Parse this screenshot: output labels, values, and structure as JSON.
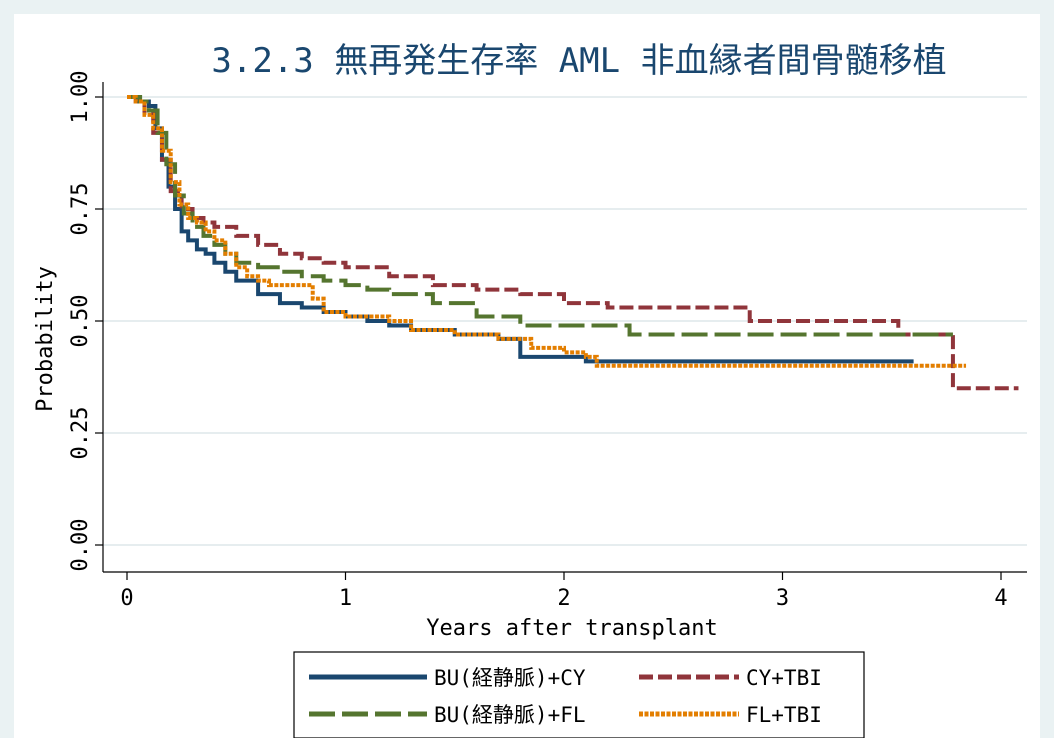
{
  "chart_data": {
    "type": "line",
    "title": "3.2.3 無再発生存率 AML 非血縁者間骨髄移植",
    "xlabel": "Years after transplant",
    "ylabel": "Probability",
    "xlim": [
      0,
      4.1
    ],
    "ylim": [
      0,
      1
    ],
    "xticks": [
      0,
      1,
      2,
      3,
      4
    ],
    "xtick_labels": [
      "0",
      "1",
      "2",
      "3",
      "4"
    ],
    "yticks": [
      0,
      0.25,
      0.5,
      0.75,
      1
    ],
    "ytick_labels": [
      "0.00",
      "0.25",
      "0.50",
      "0.75",
      "1.00"
    ],
    "grid": "horizontal",
    "legend_position": "bottom",
    "series": [
      {
        "name": "BU(経静脈)+CY",
        "color": "#1a476f",
        "dash": "solid",
        "x": [
          0,
          0.05,
          0.1,
          0.13,
          0.16,
          0.19,
          0.22,
          0.25,
          0.28,
          0.32,
          0.36,
          0.4,
          0.45,
          0.5,
          0.6,
          0.7,
          0.8,
          0.9,
          1.0,
          1.1,
          1.2,
          1.3,
          1.5,
          1.7,
          1.79,
          1.8,
          2.0,
          2.1,
          2.2,
          3.6
        ],
        "y": [
          1.0,
          0.99,
          0.98,
          0.93,
          0.86,
          0.8,
          0.75,
          0.7,
          0.68,
          0.66,
          0.65,
          0.63,
          0.61,
          0.59,
          0.56,
          0.54,
          0.53,
          0.52,
          0.51,
          0.5,
          0.49,
          0.48,
          0.47,
          0.46,
          0.46,
          0.42,
          0.42,
          0.41,
          0.41,
          0.41
        ]
      },
      {
        "name": "CY+TBI",
        "color": "#90353b",
        "dash": "dashed",
        "x": [
          0,
          0.04,
          0.08,
          0.12,
          0.16,
          0.2,
          0.25,
          0.3,
          0.35,
          0.4,
          0.5,
          0.6,
          0.7,
          0.8,
          0.9,
          1.0,
          1.2,
          1.4,
          1.6,
          1.8,
          1.9,
          2.0,
          2.2,
          2.5,
          2.75,
          2.85,
          3.2,
          3.5,
          3.53,
          3.76,
          3.78,
          4.08
        ],
        "y": [
          1.0,
          0.99,
          0.97,
          0.92,
          0.86,
          0.79,
          0.75,
          0.73,
          0.72,
          0.71,
          0.69,
          0.67,
          0.65,
          0.64,
          0.63,
          0.62,
          0.6,
          0.58,
          0.57,
          0.56,
          0.56,
          0.54,
          0.53,
          0.53,
          0.53,
          0.5,
          0.5,
          0.5,
          0.47,
          0.47,
          0.35,
          0.35
        ]
      },
      {
        "name": "BU(経静脈)+FL",
        "color": "#55752f",
        "dash": "longdash",
        "x": [
          0,
          0.06,
          0.1,
          0.14,
          0.18,
          0.22,
          0.26,
          0.3,
          0.35,
          0.4,
          0.45,
          0.5,
          0.6,
          0.7,
          0.8,
          0.9,
          1.0,
          1.1,
          1.2,
          1.4,
          1.6,
          1.8,
          2.0,
          2.1,
          2.3,
          2.5,
          3.0,
          3.5,
          3.78
        ],
        "y": [
          1.0,
          0.99,
          0.97,
          0.92,
          0.85,
          0.78,
          0.74,
          0.71,
          0.69,
          0.67,
          0.65,
          0.63,
          0.62,
          0.61,
          0.6,
          0.59,
          0.58,
          0.57,
          0.56,
          0.54,
          0.51,
          0.49,
          0.49,
          0.49,
          0.47,
          0.47,
          0.47,
          0.47,
          0.47
        ]
      },
      {
        "name": "FL+TBI",
        "color": "#e37e00",
        "dash": "dotted",
        "x": [
          0,
          0.04,
          0.08,
          0.12,
          0.16,
          0.2,
          0.24,
          0.28,
          0.32,
          0.36,
          0.4,
          0.45,
          0.5,
          0.55,
          0.6,
          0.65,
          0.7,
          0.8,
          0.85,
          0.9,
          1.0,
          1.1,
          1.2,
          1.3,
          1.4,
          1.5,
          1.7,
          1.8,
          1.85,
          1.9,
          2.0,
          2.1,
          2.15,
          2.5,
          3.0,
          3.5,
          3.84
        ],
        "y": [
          1.0,
          0.99,
          0.96,
          0.93,
          0.88,
          0.81,
          0.76,
          0.73,
          0.72,
          0.7,
          0.68,
          0.65,
          0.62,
          0.6,
          0.59,
          0.58,
          0.58,
          0.58,
          0.55,
          0.52,
          0.51,
          0.51,
          0.5,
          0.48,
          0.48,
          0.47,
          0.46,
          0.46,
          0.44,
          0.44,
          0.43,
          0.42,
          0.4,
          0.4,
          0.4,
          0.4,
          0.4
        ]
      }
    ]
  }
}
